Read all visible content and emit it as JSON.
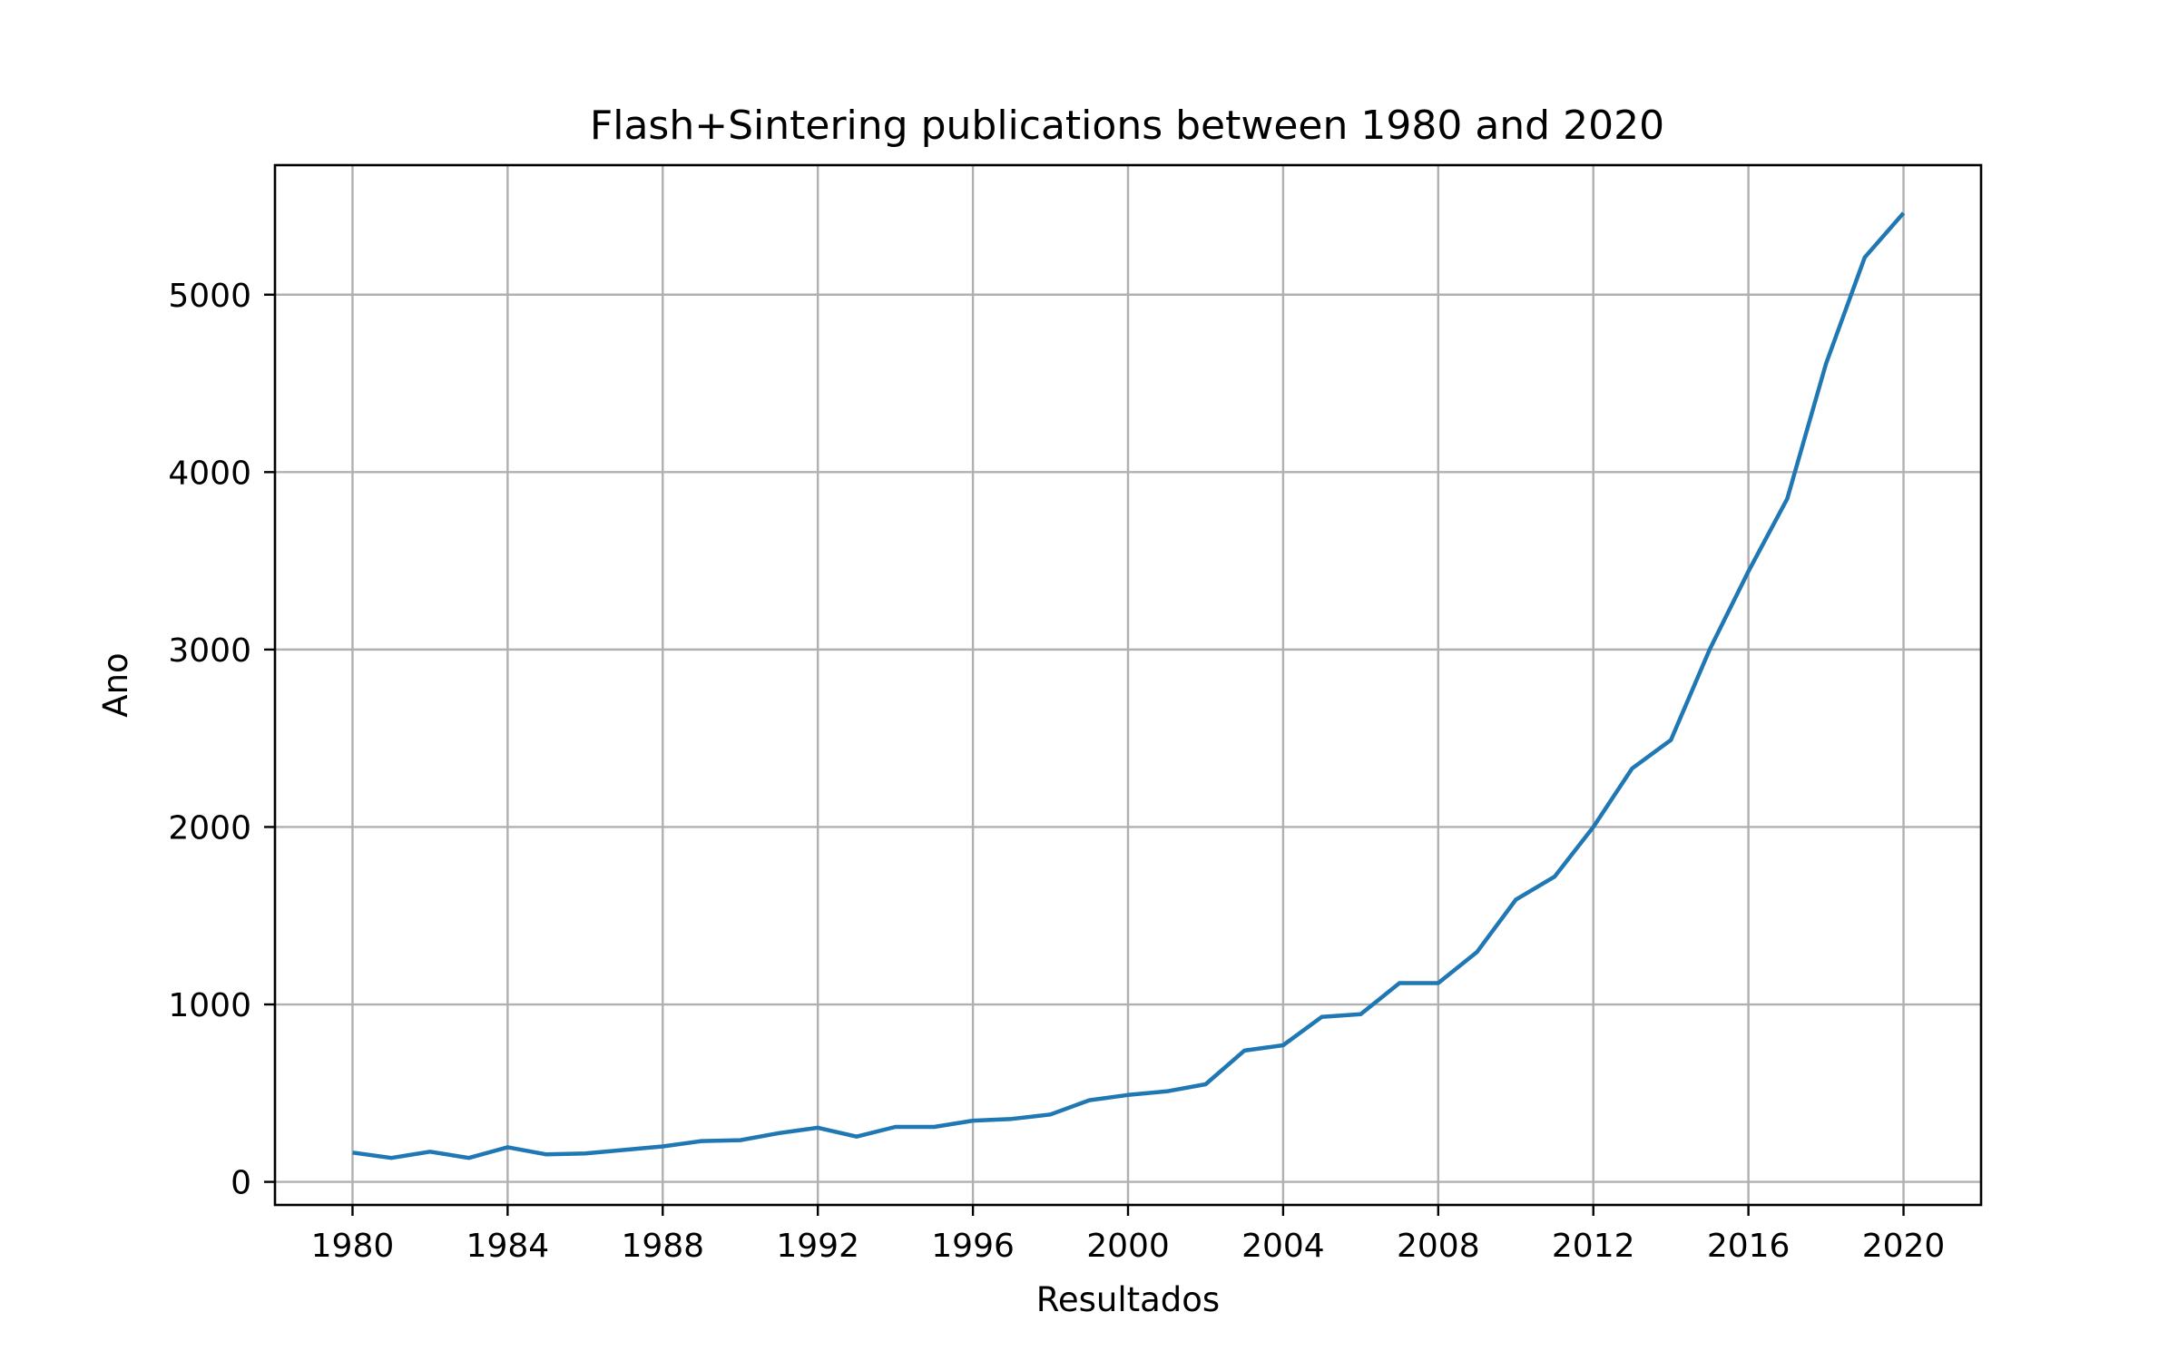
{
  "chart_data": {
    "type": "line",
    "title": "Flash+Sintering publications between 1980 and 2020",
    "xlabel": "Resultados",
    "ylabel": "Ano",
    "xlim": [
      1978,
      2022
    ],
    "ylim": [
      -130,
      5730
    ],
    "xticks": [
      1980,
      1984,
      1988,
      1992,
      1996,
      2000,
      2004,
      2008,
      2012,
      2016,
      2020
    ],
    "yticks": [
      0,
      1000,
      2000,
      3000,
      4000,
      5000
    ],
    "grid": true,
    "legend": "none",
    "series": [
      {
        "color": "#1f77b4",
        "x": [
          1980,
          1981,
          1982,
          1983,
          1984,
          1985,
          1986,
          1987,
          1988,
          1989,
          1990,
          1991,
          1992,
          1993,
          1994,
          1995,
          1996,
          1997,
          1998,
          1999,
          2000,
          2001,
          2002,
          2003,
          2004,
          2005,
          2006,
          2007,
          2008,
          2009,
          2010,
          2011,
          2012,
          2013,
          2014,
          2015,
          2016,
          2017,
          2018,
          2019,
          2020
        ],
        "y": [
          165,
          135,
          170,
          135,
          195,
          155,
          160,
          180,
          200,
          230,
          235,
          275,
          305,
          255,
          310,
          310,
          345,
          355,
          380,
          460,
          490,
          510,
          550,
          740,
          770,
          930,
          945,
          1120,
          1120,
          1295,
          1590,
          1720,
          2000,
          2330,
          2490,
          3000,
          3440,
          3850,
          4610,
          5210,
          5460
        ]
      }
    ]
  }
}
